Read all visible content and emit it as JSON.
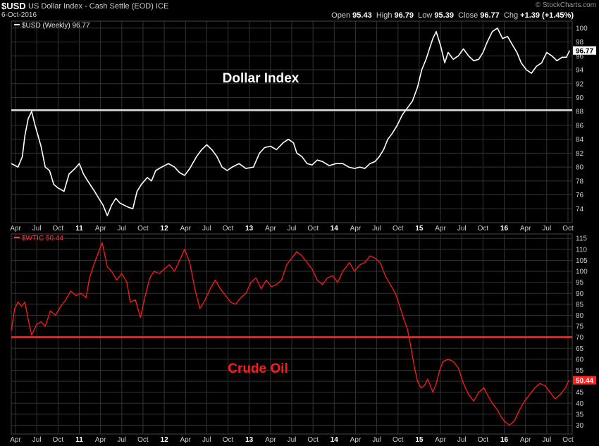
{
  "header": {
    "symbol": "$USD",
    "subtitle": "US Dollar Index - Cash Settle (EOD) ICE",
    "date": "6-Oct-2016",
    "watermark": "© StockCharts.com",
    "open_label": "Open",
    "open": "95.43",
    "high_label": "High",
    "high": "96.79",
    "low_label": "Low",
    "low": "95.39",
    "close_label": "Close",
    "close": "96.77",
    "chg_label": "Chg",
    "chg": "+1.39 (+1.45%)"
  },
  "colors": {
    "usd": "#ffffff",
    "oil": "#ff1a1a",
    "grid": "#333333",
    "axis": "#cccccc"
  },
  "chart_data": [
    {
      "type": "line",
      "legend": "$USD (Weekly) 96.77",
      "annotation": "Dollar Index",
      "last_value": "96.77",
      "ylim": [
        72,
        101
      ],
      "yticks": [
        74,
        76,
        78,
        80,
        82,
        84,
        86,
        88,
        90,
        92,
        94,
        96,
        98,
        100
      ],
      "hline": 88.2,
      "xlim": [
        2010.2,
        2016.8
      ],
      "xticks": [
        {
          "label": "Apr",
          "x": 2010.25
        },
        {
          "label": "Jul",
          "x": 2010.5
        },
        {
          "label": "Oct",
          "x": 2010.75
        },
        {
          "label": "11",
          "x": 2011.0
        },
        {
          "label": "Apr",
          "x": 2011.25
        },
        {
          "label": "Jul",
          "x": 2011.5
        },
        {
          "label": "Oct",
          "x": 2011.75
        },
        {
          "label": "12",
          "x": 2012.0
        },
        {
          "label": "Apr",
          "x": 2012.25
        },
        {
          "label": "Jul",
          "x": 2012.5
        },
        {
          "label": "Oct",
          "x": 2012.75
        },
        {
          "label": "13",
          "x": 2013.0
        },
        {
          "label": "Apr",
          "x": 2013.25
        },
        {
          "label": "Jul",
          "x": 2013.5
        },
        {
          "label": "Oct",
          "x": 2013.75
        },
        {
          "label": "14",
          "x": 2014.0
        },
        {
          "label": "Apr",
          "x": 2014.25
        },
        {
          "label": "Jul",
          "x": 2014.5
        },
        {
          "label": "Oct",
          "x": 2014.75
        },
        {
          "label": "15",
          "x": 2015.0
        },
        {
          "label": "Apr",
          "x": 2015.25
        },
        {
          "label": "Jul",
          "x": 2015.5
        },
        {
          "label": "Oct",
          "x": 2015.75
        },
        {
          "label": "16",
          "x": 2016.0
        },
        {
          "label": "Apr",
          "x": 2016.25
        },
        {
          "label": "Jul",
          "x": 2016.5
        },
        {
          "label": "Oct",
          "x": 2016.75
        }
      ],
      "points": [
        [
          2010.2,
          80.5
        ],
        [
          2010.28,
          80.0
        ],
        [
          2010.33,
          81.5
        ],
        [
          2010.36,
          84.5
        ],
        [
          2010.4,
          87.0
        ],
        [
          2010.44,
          88.0
        ],
        [
          2010.48,
          86.0
        ],
        [
          2010.55,
          83.0
        ],
        [
          2010.6,
          80.0
        ],
        [
          2010.65,
          79.5
        ],
        [
          2010.7,
          77.5
        ],
        [
          2010.75,
          77.0
        ],
        [
          2010.82,
          76.5
        ],
        [
          2010.88,
          79.0
        ],
        [
          2010.95,
          79.8
        ],
        [
          2011.0,
          80.5
        ],
        [
          2011.05,
          79.0
        ],
        [
          2011.1,
          78.0
        ],
        [
          2011.18,
          76.5
        ],
        [
          2011.23,
          75.5
        ],
        [
          2011.28,
          74.5
        ],
        [
          2011.33,
          73.0
        ],
        [
          2011.38,
          74.5
        ],
        [
          2011.43,
          75.5
        ],
        [
          2011.48,
          74.8
        ],
        [
          2011.53,
          74.5
        ],
        [
          2011.58,
          74.2
        ],
        [
          2011.63,
          74.0
        ],
        [
          2011.68,
          76.5
        ],
        [
          2011.73,
          77.5
        ],
        [
          2011.8,
          78.5
        ],
        [
          2011.85,
          78.0
        ],
        [
          2011.9,
          79.5
        ],
        [
          2011.97,
          80.0
        ],
        [
          2012.05,
          80.5
        ],
        [
          2012.12,
          80.0
        ],
        [
          2012.18,
          79.2
        ],
        [
          2012.24,
          78.8
        ],
        [
          2012.3,
          79.8
        ],
        [
          2012.38,
          81.5
        ],
        [
          2012.44,
          82.5
        ],
        [
          2012.5,
          83.2
        ],
        [
          2012.56,
          82.5
        ],
        [
          2012.62,
          81.5
        ],
        [
          2012.68,
          80.0
        ],
        [
          2012.74,
          79.5
        ],
        [
          2012.8,
          80.0
        ],
        [
          2012.88,
          80.5
        ],
        [
          2012.96,
          79.8
        ],
        [
          2013.05,
          80.0
        ],
        [
          2013.12,
          82.0
        ],
        [
          2013.18,
          82.8
        ],
        [
          2013.25,
          83.0
        ],
        [
          2013.32,
          82.5
        ],
        [
          2013.4,
          83.5
        ],
        [
          2013.46,
          84.0
        ],
        [
          2013.52,
          83.5
        ],
        [
          2013.56,
          82.0
        ],
        [
          2013.62,
          81.5
        ],
        [
          2013.68,
          80.5
        ],
        [
          2013.74,
          80.3
        ],
        [
          2013.8,
          81.0
        ],
        [
          2013.86,
          80.8
        ],
        [
          2013.94,
          80.2
        ],
        [
          2014.02,
          80.5
        ],
        [
          2014.1,
          80.5
        ],
        [
          2014.17,
          80.0
        ],
        [
          2014.24,
          79.8
        ],
        [
          2014.3,
          80.0
        ],
        [
          2014.36,
          79.8
        ],
        [
          2014.42,
          80.5
        ],
        [
          2014.48,
          80.8
        ],
        [
          2014.53,
          81.5
        ],
        [
          2014.58,
          82.5
        ],
        [
          2014.63,
          84.0
        ],
        [
          2014.68,
          84.8
        ],
        [
          2014.74,
          86.0
        ],
        [
          2014.8,
          87.5
        ],
        [
          2014.86,
          88.5
        ],
        [
          2014.92,
          89.5
        ],
        [
          2014.98,
          91.5
        ],
        [
          2015.03,
          94.0
        ],
        [
          2015.08,
          95.5
        ],
        [
          2015.12,
          97.0
        ],
        [
          2015.16,
          98.5
        ],
        [
          2015.2,
          99.5
        ],
        [
          2015.25,
          97.5
        ],
        [
          2015.3,
          95.0
        ],
        [
          2015.34,
          96.5
        ],
        [
          2015.4,
          95.5
        ],
        [
          2015.46,
          96.0
        ],
        [
          2015.52,
          97.0
        ],
        [
          2015.58,
          96.0
        ],
        [
          2015.64,
          95.3
        ],
        [
          2015.7,
          95.5
        ],
        [
          2015.75,
          96.5
        ],
        [
          2015.8,
          98.0
        ],
        [
          2015.86,
          99.5
        ],
        [
          2015.92,
          100.0
        ],
        [
          2015.98,
          98.5
        ],
        [
          2016.04,
          98.8
        ],
        [
          2016.1,
          97.5
        ],
        [
          2016.15,
          96.5
        ],
        [
          2016.2,
          95.0
        ],
        [
          2016.26,
          94.0
        ],
        [
          2016.32,
          93.5
        ],
        [
          2016.38,
          94.5
        ],
        [
          2016.44,
          95.0
        ],
        [
          2016.5,
          96.5
        ],
        [
          2016.56,
          96.0
        ],
        [
          2016.62,
          95.3
        ],
        [
          2016.68,
          95.8
        ],
        [
          2016.73,
          95.8
        ],
        [
          2016.77,
          96.77
        ]
      ]
    },
    {
      "type": "line",
      "legend": "$WTIC 50.44",
      "annotation": "Crude Oil",
      "last_value": "50.44",
      "ylim": [
        26,
        117
      ],
      "yticks": [
        30,
        35,
        40,
        45,
        50,
        55,
        60,
        65,
        70,
        75,
        80,
        85,
        90,
        95,
        100,
        105,
        110,
        115
      ],
      "hline": 70,
      "xlim": [
        2010.2,
        2016.8
      ],
      "xticks": [
        {
          "label": "Apr",
          "x": 2010.25
        },
        {
          "label": "Jul",
          "x": 2010.5
        },
        {
          "label": "Oct",
          "x": 2010.75
        },
        {
          "label": "11",
          "x": 2011.0
        },
        {
          "label": "Apr",
          "x": 2011.25
        },
        {
          "label": "Jul",
          "x": 2011.5
        },
        {
          "label": "Oct",
          "x": 2011.75
        },
        {
          "label": "12",
          "x": 2012.0
        },
        {
          "label": "Apr",
          "x": 2012.25
        },
        {
          "label": "Jul",
          "x": 2012.5
        },
        {
          "label": "Oct",
          "x": 2012.75
        },
        {
          "label": "13",
          "x": 2013.0
        },
        {
          "label": "Apr",
          "x": 2013.25
        },
        {
          "label": "Jul",
          "x": 2013.5
        },
        {
          "label": "Oct",
          "x": 2013.75
        },
        {
          "label": "14",
          "x": 2014.0
        },
        {
          "label": "Apr",
          "x": 2014.25
        },
        {
          "label": "Jul",
          "x": 2014.5
        },
        {
          "label": "Oct",
          "x": 2014.75
        },
        {
          "label": "15",
          "x": 2015.0
        },
        {
          "label": "Apr",
          "x": 2015.25
        },
        {
          "label": "Jul",
          "x": 2015.5
        },
        {
          "label": "Oct",
          "x": 2015.75
        },
        {
          "label": "16",
          "x": 2016.0
        },
        {
          "label": "Apr",
          "x": 2016.25
        },
        {
          "label": "Jul",
          "x": 2016.5
        },
        {
          "label": "Oct",
          "x": 2016.75
        }
      ],
      "points": [
        [
          2010.2,
          73
        ],
        [
          2010.24,
          83
        ],
        [
          2010.28,
          86
        ],
        [
          2010.32,
          84
        ],
        [
          2010.36,
          86
        ],
        [
          2010.4,
          78
        ],
        [
          2010.44,
          71
        ],
        [
          2010.5,
          76
        ],
        [
          2010.55,
          77
        ],
        [
          2010.6,
          75
        ],
        [
          2010.66,
          82
        ],
        [
          2010.72,
          80
        ],
        [
          2010.78,
          84
        ],
        [
          2010.84,
          87
        ],
        [
          2010.9,
          91
        ],
        [
          2010.96,
          89
        ],
        [
          2011.02,
          90
        ],
        [
          2011.08,
          88
        ],
        [
          2011.12,
          97
        ],
        [
          2011.18,
          104
        ],
        [
          2011.22,
          108
        ],
        [
          2011.27,
          113
        ],
        [
          2011.33,
          102
        ],
        [
          2011.38,
          100
        ],
        [
          2011.44,
          96
        ],
        [
          2011.5,
          99
        ],
        [
          2011.56,
          95
        ],
        [
          2011.6,
          86
        ],
        [
          2011.66,
          87
        ],
        [
          2011.72,
          79
        ],
        [
          2011.77,
          88
        ],
        [
          2011.83,
          97
        ],
        [
          2011.88,
          100
        ],
        [
          2011.94,
          99
        ],
        [
          2012.0,
          101
        ],
        [
          2012.06,
          103
        ],
        [
          2012.12,
          100
        ],
        [
          2012.18,
          105
        ],
        [
          2012.24,
          110
        ],
        [
          2012.3,
          104
        ],
        [
          2012.36,
          92
        ],
        [
          2012.42,
          83
        ],
        [
          2012.48,
          87
        ],
        [
          2012.54,
          92
        ],
        [
          2012.6,
          96
        ],
        [
          2012.66,
          92
        ],
        [
          2012.72,
          89
        ],
        [
          2012.78,
          86
        ],
        [
          2012.84,
          85
        ],
        [
          2012.9,
          88
        ],
        [
          2012.96,
          90
        ],
        [
          2013.02,
          95
        ],
        [
          2013.08,
          97
        ],
        [
          2013.14,
          92
        ],
        [
          2013.2,
          96
        ],
        [
          2013.26,
          93
        ],
        [
          2013.32,
          94
        ],
        [
          2013.38,
          96
        ],
        [
          2013.44,
          103
        ],
        [
          2013.5,
          106
        ],
        [
          2013.56,
          109
        ],
        [
          2013.62,
          107
        ],
        [
          2013.68,
          104
        ],
        [
          2013.74,
          101
        ],
        [
          2013.8,
          96
        ],
        [
          2013.86,
          94
        ],
        [
          2013.92,
          97
        ],
        [
          2013.98,
          98
        ],
        [
          2014.04,
          95
        ],
        [
          2014.1,
          100
        ],
        [
          2014.18,
          104
        ],
        [
          2014.24,
          100
        ],
        [
          2014.3,
          103
        ],
        [
          2014.36,
          104
        ],
        [
          2014.42,
          107
        ],
        [
          2014.48,
          106
        ],
        [
          2014.54,
          104
        ],
        [
          2014.6,
          98
        ],
        [
          2014.66,
          94
        ],
        [
          2014.72,
          90
        ],
        [
          2014.78,
          83
        ],
        [
          2014.82,
          78
        ],
        [
          2014.86,
          74
        ],
        [
          2014.9,
          66
        ],
        [
          2014.94,
          57
        ],
        [
          2014.98,
          50
        ],
        [
          2015.02,
          47
        ],
        [
          2015.06,
          48
        ],
        [
          2015.1,
          51
        ],
        [
          2015.16,
          45
        ],
        [
          2015.2,
          49
        ],
        [
          2015.24,
          55
        ],
        [
          2015.28,
          59
        ],
        [
          2015.34,
          60
        ],
        [
          2015.4,
          59
        ],
        [
          2015.46,
          56
        ],
        [
          2015.52,
          49
        ],
        [
          2015.58,
          44
        ],
        [
          2015.64,
          41
        ],
        [
          2015.7,
          45
        ],
        [
          2015.76,
          47
        ],
        [
          2015.8,
          44
        ],
        [
          2015.86,
          40
        ],
        [
          2015.92,
          37
        ],
        [
          2015.96,
          34
        ],
        [
          2016.0,
          32
        ],
        [
          2016.06,
          30
        ],
        [
          2016.12,
          32
        ],
        [
          2016.18,
          37
        ],
        [
          2016.24,
          41
        ],
        [
          2016.3,
          44
        ],
        [
          2016.36,
          47
        ],
        [
          2016.42,
          49
        ],
        [
          2016.48,
          48
        ],
        [
          2016.54,
          45
        ],
        [
          2016.6,
          42
        ],
        [
          2016.66,
          44
        ],
        [
          2016.72,
          47
        ],
        [
          2016.76,
          50.44
        ]
      ]
    }
  ]
}
